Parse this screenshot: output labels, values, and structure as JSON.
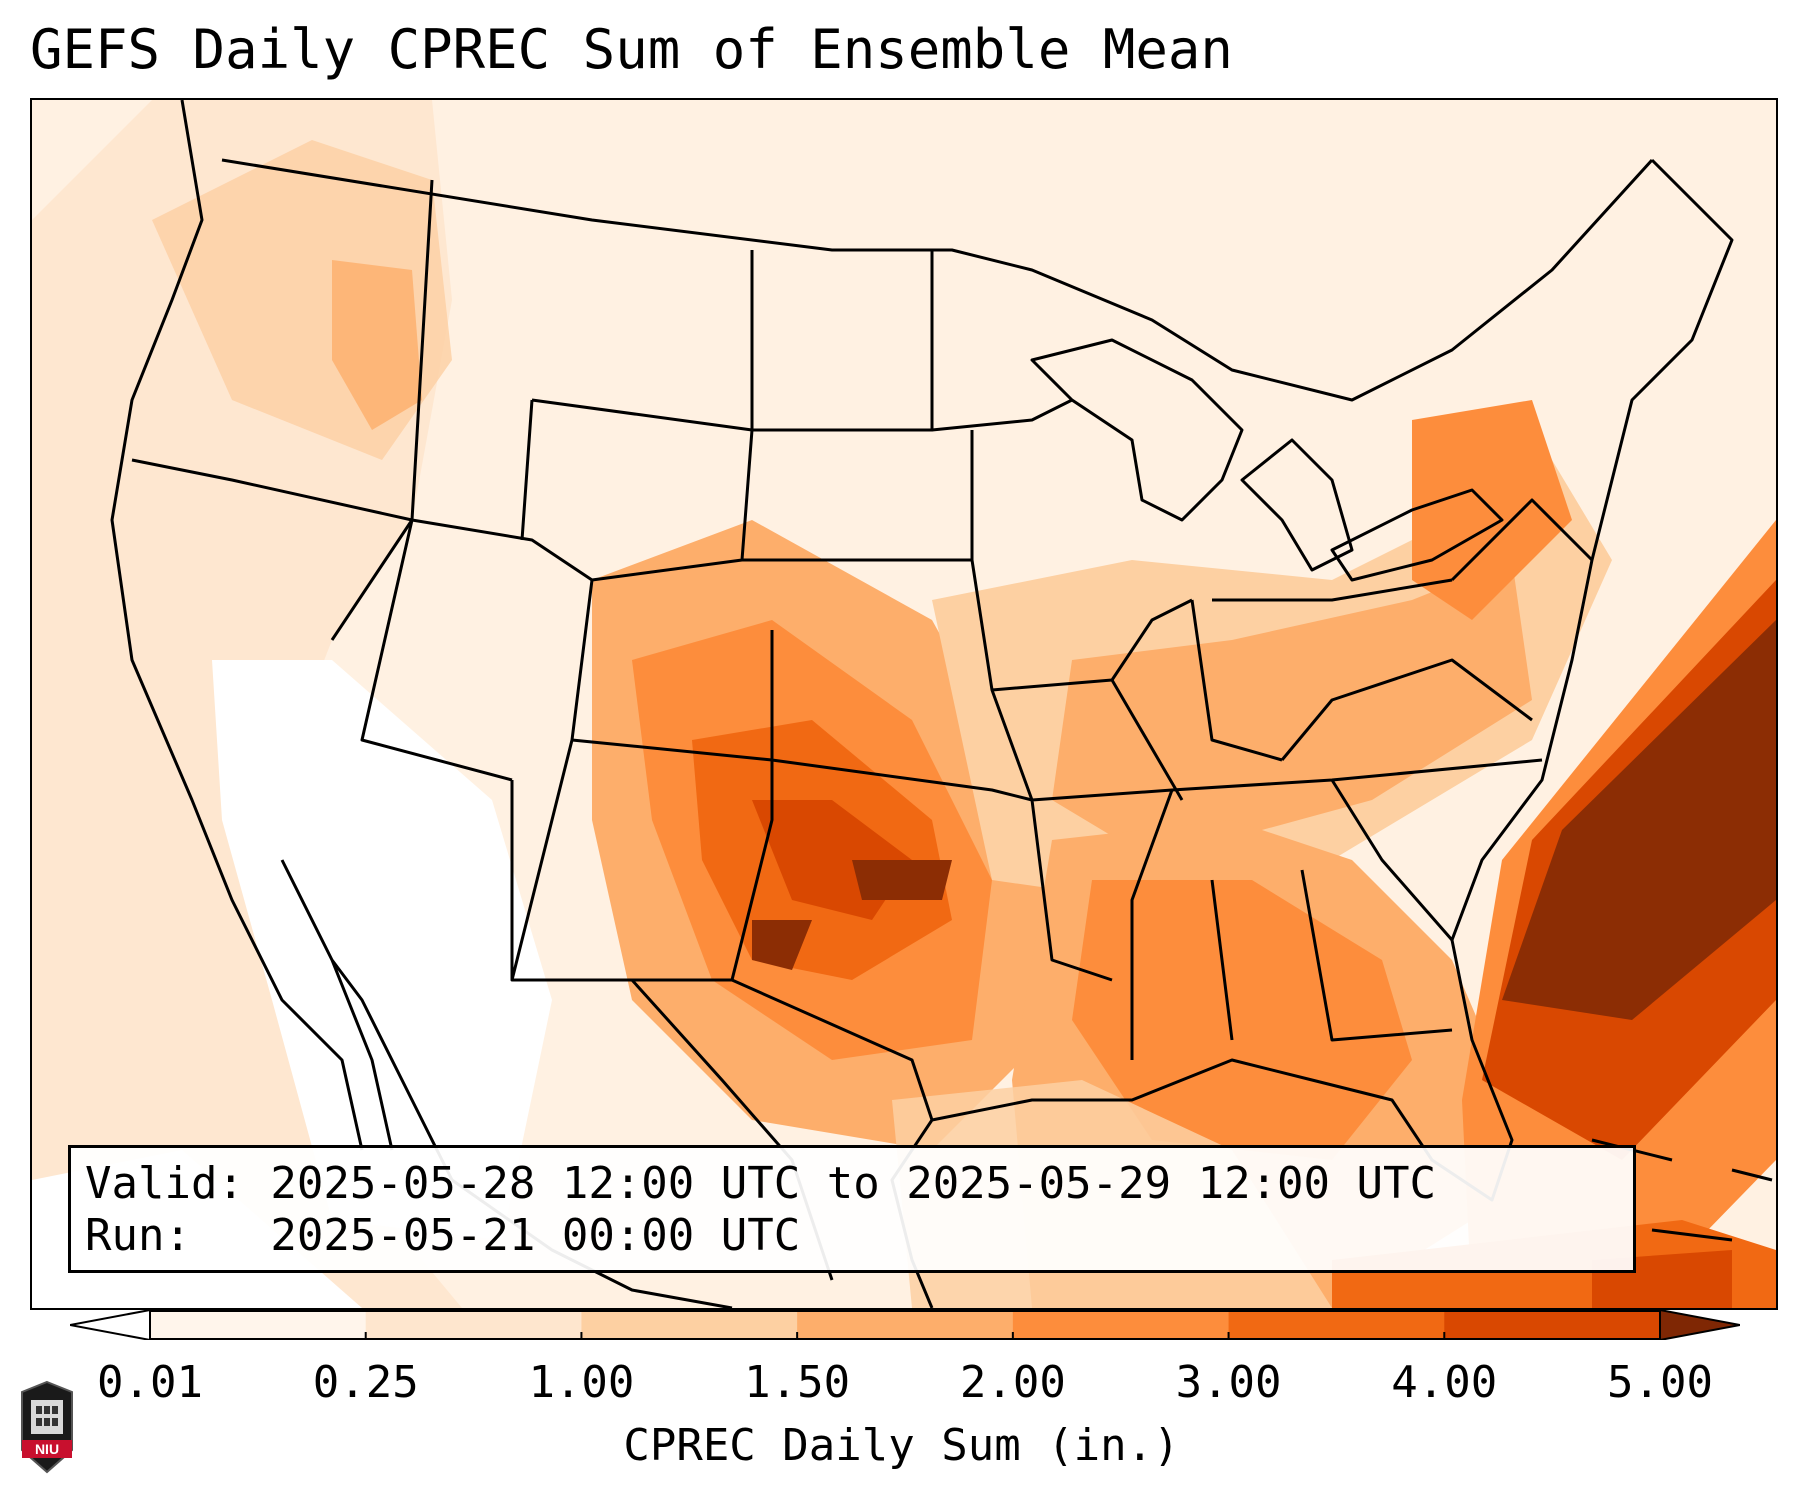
{
  "title": "GEFS Daily CPREC Sum of Ensemble Mean",
  "info": {
    "valid_line": "Valid: 2025-05-28 12:00 UTC to 2025-05-29 12:00 UTC",
    "run_line": "Run:   2025-05-21 00:00 UTC"
  },
  "colorbar": {
    "label": "CPREC Daily Sum (in.)",
    "ticks": [
      "0.01",
      "0.25",
      "1.00",
      "1.50",
      "2.00",
      "3.00",
      "4.00",
      "5.00"
    ],
    "colors": [
      "#fff5eb",
      "#fee6ce",
      "#fdd0a2",
      "#fdae6b",
      "#fd8d3c",
      "#f16913",
      "#d94801",
      "#8c2d04"
    ],
    "under_color": "#ffffff",
    "over_color": "#7f2704"
  },
  "logo": {
    "text": "NIU"
  }
}
